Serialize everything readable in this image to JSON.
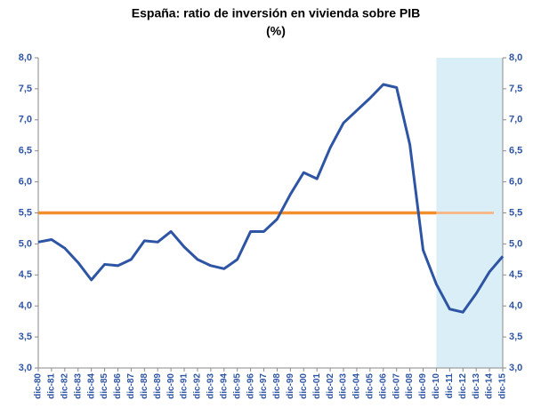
{
  "chart_data": {
    "type": "line",
    "title": "España: ratio de inversión en vivienda sobre PIB",
    "subtitle": "(%)",
    "categories": [
      "dic-80",
      "dic-81",
      "dic-82",
      "dic-83",
      "dic-84",
      "dic-85",
      "dic-86",
      "dic-87",
      "dic-88",
      "dic-89",
      "dic-90",
      "dic-91",
      "dic-92",
      "dic-93",
      "dic-94",
      "dic-95",
      "dic-96",
      "dic-97",
      "dic-98",
      "dic-99",
      "dic-00",
      "dic-01",
      "dic-02",
      "dic-03",
      "dic-04",
      "dic-05",
      "dic-06",
      "dic-07",
      "dic-08",
      "dic-09",
      "dic-10",
      "dic-11",
      "dic-12",
      "dic-13",
      "dic-14",
      "dic-15"
    ],
    "series": [
      {
        "color": "#2e54a4",
        "values": [
          5.03,
          5.07,
          4.93,
          4.7,
          4.42,
          4.67,
          4.65,
          4.75,
          5.05,
          5.03,
          5.2,
          4.95,
          4.75,
          4.65,
          4.6,
          4.75,
          5.2,
          5.2,
          5.4,
          5.8,
          6.15,
          6.05,
          6.55,
          6.95,
          7.15,
          7.35,
          7.57,
          7.52,
          6.6,
          4.9,
          4.35,
          3.95,
          3.9,
          4.2,
          4.55,
          4.8
        ]
      }
    ],
    "reference_line": 5.5,
    "reference_color": "#f28e2b",
    "reference_forecast_color": "#f6b98a",
    "shaded_from": "dic-10",
    "shade_color": "#daeef8",
    "ylim": [
      3,
      8
    ],
    "yticks": [
      {
        "value": 3,
        "label": "3,0"
      },
      {
        "value": 3.5,
        "label": "3,5"
      },
      {
        "value": 4,
        "label": "4,0"
      },
      {
        "value": 4.5,
        "label": "4,5"
      },
      {
        "value": 5,
        "label": "5,0"
      },
      {
        "value": 5.5,
        "label": "5,5"
      },
      {
        "value": 6,
        "label": "6,0"
      },
      {
        "value": 6.5,
        "label": "6,5"
      },
      {
        "value": 7,
        "label": "7,0"
      },
      {
        "value": 7.5,
        "label": "7,5"
      },
      {
        "value": 8,
        "label": "8,0"
      }
    ],
    "y2lim": [
      3,
      8
    ],
    "y2ticks": [
      {
        "value": 3,
        "label": "3,0"
      },
      {
        "value": 3.5,
        "label": "3,5"
      },
      {
        "value": 4,
        "label": "4,0"
      },
      {
        "value": 4.5,
        "label": "4,5"
      },
      {
        "value": 5,
        "label": "5,0"
      },
      {
        "value": 5.5,
        "label": "5,5"
      },
      {
        "value": 6,
        "label": "6,0"
      },
      {
        "value": 6.5,
        "label": "6,5"
      },
      {
        "value": 7,
        "label": "7,0"
      },
      {
        "value": 7.5,
        "label": "7,5"
      },
      {
        "value": 8,
        "label": "8,0"
      }
    ],
    "grid": false
  }
}
